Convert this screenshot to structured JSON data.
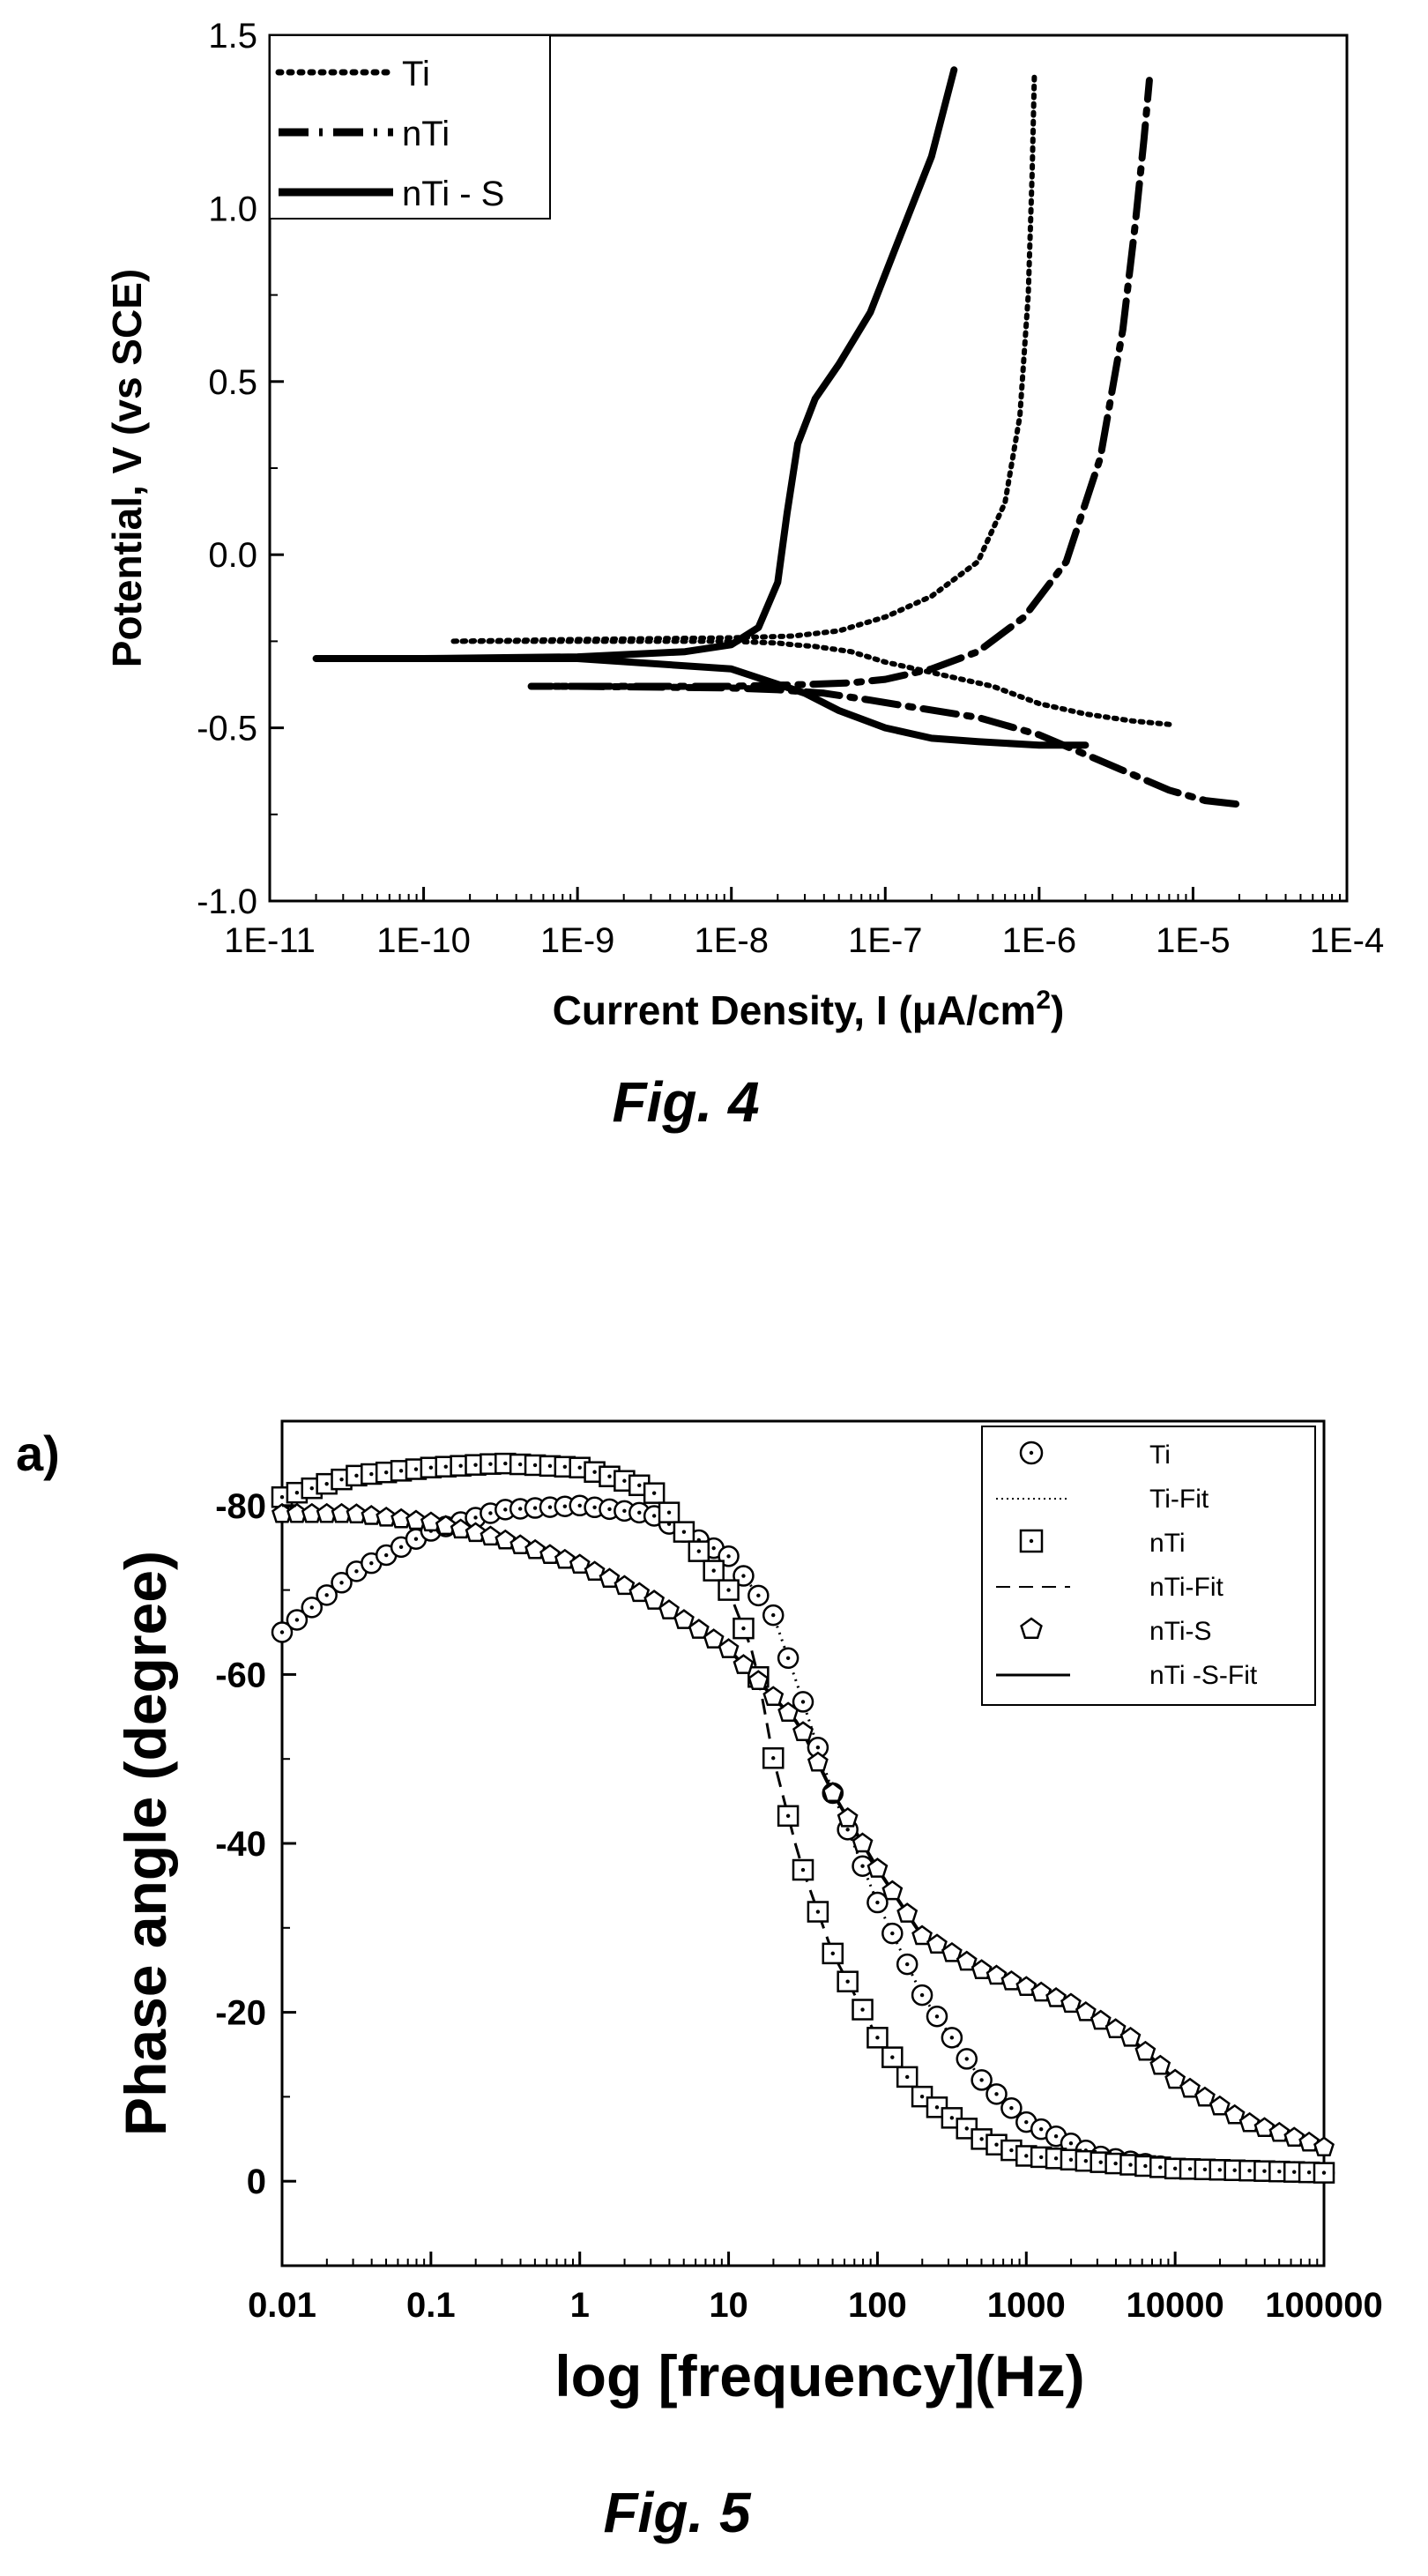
{
  "chart_data": [
    {
      "type": "line",
      "caption": "Fig. 4",
      "xlabel_main": "Current Density, I (",
      "xlabel_mu": "μ",
      "xlabel_unit": "A/cm",
      "xlabel_sup": "2",
      "xlabel_close": ")",
      "ylabel": "Potential, V (vs SCE)",
      "xscale": "log",
      "xlim": [
        1e-11,
        0.0001
      ],
      "ylim": [
        -1.0,
        1.5
      ],
      "xticks": [
        1e-11,
        1e-10,
        1e-09,
        1e-08,
        1e-07,
        1e-06,
        1e-05,
        0.0001
      ],
      "xtick_labels": [
        "1E-11",
        "1E-10",
        "1E-9",
        "1E-8",
        "1E-7",
        "1E-6",
        "1E-5",
        "1E-4"
      ],
      "yticks": [
        -1.0,
        -0.5,
        0.0,
        0.5,
        1.0,
        1.5
      ],
      "ytick_labels": [
        "-1.0",
        "-0.5",
        "0.0",
        "0.5",
        "1.0",
        "1.5"
      ],
      "legend_position": "top-left",
      "series": [
        {
          "name": "Ti",
          "style": "dotted",
          "x": [
            7e-06,
            4e-06,
            2e-06,
            1e-06,
            5e-07,
            2e-07,
            1e-07,
            6e-08,
            3.5e-08,
            2.5e-08,
            2e-08,
            1e-08,
            3e-09,
            5e-10,
            1.5e-10,
            1e-09,
            1e-08,
            2.5e-08,
            5e-08,
            1e-07,
            2e-07,
            4e-07,
            6e-07,
            7.5e-07,
            8.5e-07,
            9e-07,
            9.3e-07
          ],
          "y": [
            -0.49,
            -0.48,
            -0.46,
            -0.43,
            -0.38,
            -0.34,
            -0.31,
            -0.28,
            -0.265,
            -0.26,
            -0.255,
            -0.25,
            -0.25,
            -0.25,
            -0.25,
            -0.245,
            -0.24,
            -0.235,
            -0.22,
            -0.18,
            -0.12,
            -0.02,
            0.15,
            0.4,
            0.75,
            1.1,
            1.38
          ]
        },
        {
          "name": "nTi",
          "style": "dash-dot",
          "x": [
            1.9e-05,
            1.2e-05,
            7e-06,
            3e-06,
            1e-06,
            4e-07,
            1.5e-07,
            8e-08,
            4e-08,
            2e-08,
            1e-08,
            1e-09,
            5e-10,
            3e-09,
            1e-08,
            3e-08,
            6e-08,
            1e-07,
            2e-07,
            4e-07,
            8e-07,
            1.5e-06,
            2.5e-06,
            3.5e-06,
            4.2e-06,
            4.8e-06,
            5.2e-06
          ],
          "y": [
            -0.72,
            -0.71,
            -0.68,
            -0.61,
            -0.52,
            -0.47,
            -0.44,
            -0.42,
            -0.4,
            -0.39,
            -0.385,
            -0.38,
            -0.38,
            -0.38,
            -0.38,
            -0.375,
            -0.37,
            -0.36,
            -0.33,
            -0.28,
            -0.18,
            -0.02,
            0.28,
            0.65,
            0.95,
            1.2,
            1.37
          ]
        },
        {
          "name": "nTi - S",
          "style": "solid",
          "x": [
            2e-06,
            1e-06,
            4e-07,
            2e-07,
            1e-07,
            5e-08,
            3e-08,
            1e-08,
            1e-09,
            1e-10,
            2e-11,
            1e-10,
            1e-09,
            5e-09,
            1e-08,
            1.5e-08,
            2e-08,
            2.3e-08,
            2.7e-08,
            3.5e-08,
            5e-08,
            8e-08,
            1.2e-07,
            2e-07,
            2.8e-07
          ],
          "y": [
            -0.55,
            -0.55,
            -0.54,
            -0.53,
            -0.5,
            -0.45,
            -0.4,
            -0.33,
            -0.3,
            -0.3,
            -0.3,
            -0.3,
            -0.295,
            -0.28,
            -0.26,
            -0.21,
            -0.08,
            0.12,
            0.32,
            0.45,
            0.55,
            0.7,
            0.9,
            1.15,
            1.4
          ]
        }
      ]
    },
    {
      "type": "scatter",
      "caption": "Fig. 5",
      "panel_label": "a)",
      "xlabel": "log [frequency](Hz)",
      "ylabel": "Phase angle (degree)",
      "xscale": "log",
      "xlim": [
        0.01,
        100000
      ],
      "ylim": [
        10,
        -90
      ],
      "xticks": [
        0.01,
        0.1,
        1,
        10,
        100,
        1000,
        10000,
        100000
      ],
      "xtick_labels": [
        "0.01",
        "0.1",
        "1",
        "10",
        "100",
        "1000",
        "10000",
        "100000"
      ],
      "yticks": [
        0,
        -20,
        -40,
        -60,
        -80
      ],
      "ytick_labels": [
        "0",
        "-20",
        "-40",
        "-60",
        "-80"
      ],
      "legend_position": "top-right",
      "legend": [
        {
          "name": "Ti",
          "kind": "circle-dot-marker"
        },
        {
          "name": "Ti-Fit",
          "kind": "dotted-line"
        },
        {
          "name": "nTi",
          "kind": "square-dot-marker"
        },
        {
          "name": "nTi-Fit",
          "kind": "dashed-line"
        },
        {
          "name": "nTi-S",
          "kind": "pentagon-marker"
        },
        {
          "name": "nTi -S-Fit",
          "kind": "solid-line"
        }
      ],
      "series": [
        {
          "name": "Ti",
          "x": [
            0.01,
            0.03,
            0.1,
            0.3,
            1,
            3,
            10,
            20,
            30,
            50,
            100,
            200,
            500,
            1000,
            3000,
            10000,
            100000
          ],
          "y": [
            -65,
            -72,
            -77,
            -79.5,
            -80,
            -79,
            -74,
            -67,
            -58,
            -46,
            -33,
            -22,
            -12,
            -7,
            -3,
            -1.5,
            -1
          ]
        },
        {
          "name": "nTi",
          "x": [
            0.01,
            0.03,
            0.1,
            0.3,
            1,
            3,
            10,
            15,
            20,
            30,
            50,
            100,
            200,
            500,
            1000,
            10000,
            100000
          ],
          "y": [
            -81,
            -83.5,
            -84.5,
            -85,
            -84.5,
            -82,
            -70,
            -62,
            -50,
            -38,
            -27,
            -17,
            -10,
            -5,
            -3,
            -1.5,
            -1
          ]
        },
        {
          "name": "nTi-S",
          "x": [
            0.01,
            0.03,
            0.1,
            0.3,
            1,
            3,
            10,
            30,
            50,
            100,
            200,
            500,
            1000,
            2000,
            5000,
            10000,
            30000,
            100000
          ],
          "y": [
            -79,
            -79,
            -78,
            -76,
            -73,
            -69,
            -63,
            -54,
            -46,
            -37,
            -29,
            -25,
            -23,
            -21,
            -17,
            -12,
            -7,
            -4
          ]
        }
      ]
    }
  ]
}
